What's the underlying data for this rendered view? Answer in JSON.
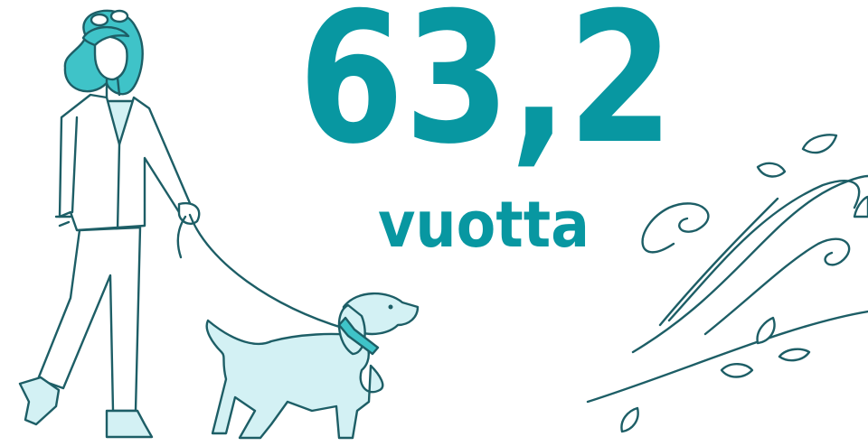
{
  "headline": {
    "value": "63,2",
    "unit": "vuotta"
  }
}
